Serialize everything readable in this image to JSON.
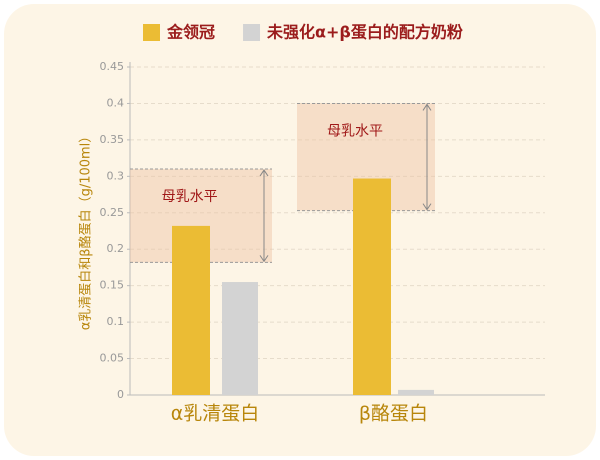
{
  "chart_data": {
    "type": "bar",
    "categories": [
      "α乳清蛋白",
      "β酪蛋白"
    ],
    "series": [
      {
        "name": "金领冠",
        "color": "#ebbc34",
        "values": [
          0.232,
          0.297
        ]
      },
      {
        "name": "未强化α+β蛋白的配方奶粉",
        "color": "#d3d3d3",
        "values": [
          0.155,
          0.007
        ]
      }
    ],
    "ylabel": "α乳清蛋白和β酪蛋白（g/100ml）",
    "ylim": [
      0,
      0.45
    ],
    "yticks": [
      0,
      0.05,
      0.1,
      0.15,
      0.2,
      0.25,
      0.3,
      0.35,
      0.4,
      0.45
    ],
    "grid": true,
    "annotations": [
      {
        "label": "母乳水平",
        "range": [
          0.182,
          0.31
        ]
      },
      {
        "label": "母乳水平",
        "range": [
          0.253,
          0.4
        ]
      }
    ]
  }
}
